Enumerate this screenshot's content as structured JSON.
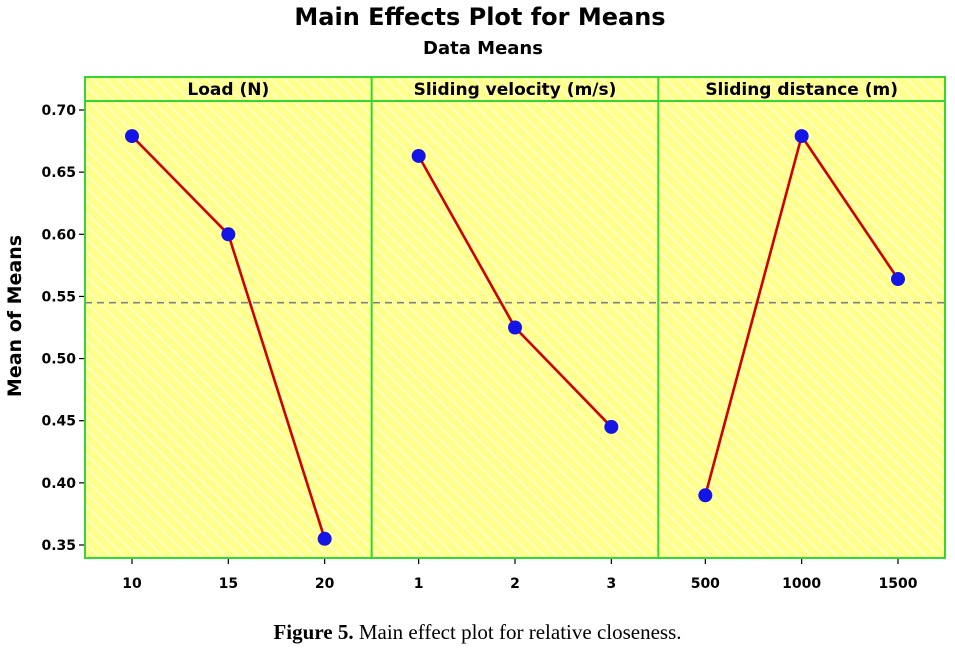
{
  "chart_data": {
    "type": "line",
    "title": "Main Effects Plot for Means",
    "subtitle": "Data Means",
    "ylabel": "Mean of Means",
    "ylim": [
      0.34,
      0.7
    ],
    "yticks": [
      "0.35",
      "0.40",
      "0.45",
      "0.50",
      "0.55",
      "0.60",
      "0.65",
      "0.70"
    ],
    "reference_line": 0.545,
    "grid": false,
    "panels": [
      {
        "label": "Load (N)",
        "categories": [
          "10",
          "15",
          "20"
        ],
        "values": [
          0.679,
          0.6,
          0.355
        ]
      },
      {
        "label": "Sliding velocity (m/s)",
        "categories": [
          "1",
          "2",
          "3"
        ],
        "values": [
          0.663,
          0.525,
          0.445
        ]
      },
      {
        "label": "Sliding distance (m)",
        "categories": [
          "500",
          "1000",
          "1500"
        ],
        "values": [
          0.39,
          0.679,
          0.564
        ]
      }
    ],
    "colors": {
      "background": "#FFFF8C",
      "hatch": "#FFFFFF",
      "border": "#33D633",
      "line": "#CC0000",
      "marker": "#1414E6",
      "reference": "#808080"
    }
  },
  "caption": {
    "label": "Figure 5.",
    "text": "Main effect plot for relative closeness."
  }
}
